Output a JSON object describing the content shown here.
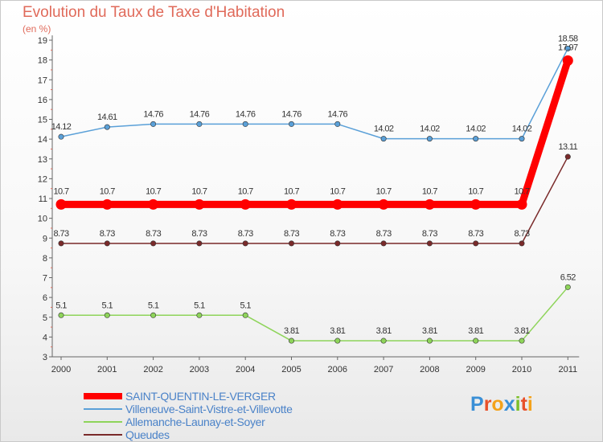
{
  "title": "Evolution du Taux de Taxe d'Habitation",
  "unit_label": "(en %)",
  "logo_text": "Proxiti",
  "logo_colors": [
    "#3a8fd6",
    "#e8502a",
    "#f4a21b",
    "#3a8fd6",
    "#7bbf2a",
    "#e8502a",
    "#f4a21b"
  ],
  "chart_data": {
    "type": "line",
    "title": "Evolution du Taux de Taxe d'Habitation",
    "ylabel": "(en %)",
    "xlabel": "",
    "x": [
      "2000",
      "2001",
      "2002",
      "2003",
      "2004",
      "2005",
      "2006",
      "2007",
      "2008",
      "2009",
      "2010",
      "2011"
    ],
    "ylim": [
      3,
      19
    ],
    "yticks": [
      3,
      4,
      5,
      6,
      7,
      8,
      9,
      10,
      11,
      12,
      13,
      14,
      15,
      16,
      17,
      18,
      19
    ],
    "grid": false,
    "legend": "bottom",
    "series": [
      {
        "name": "SAINT-QUENTIN-LE-VERGER",
        "color": "#ff0000",
        "bold": true,
        "values": [
          10.7,
          10.7,
          10.7,
          10.7,
          10.7,
          10.7,
          10.7,
          10.7,
          10.7,
          10.7,
          10.7,
          17.97
        ],
        "labels": [
          "10.7",
          "10.7",
          "10.7",
          "10.7",
          "10.7",
          "10.7",
          "10.7",
          "10.7",
          "10.7",
          "10.7",
          "10.7",
          "17.97"
        ]
      },
      {
        "name": "Villeneuve-Saint-Vistre-et-Villevotte",
        "color": "#5aa0d8",
        "bold": false,
        "values": [
          14.12,
          14.61,
          14.76,
          14.76,
          14.76,
          14.76,
          14.76,
          14.02,
          14.02,
          14.02,
          14.02,
          18.58
        ],
        "labels": [
          "14.12",
          "14.61",
          "14.76",
          "14.76",
          "14.76",
          "14.76",
          "14.76",
          "14.02",
          "14.02",
          "14.02",
          "14.02",
          "18.58"
        ]
      },
      {
        "name": "Allemanche-Launay-et-Soyer",
        "color": "#8ed45a",
        "bold": false,
        "values": [
          5.1,
          5.1,
          5.1,
          5.1,
          5.1,
          3.81,
          3.81,
          3.81,
          3.81,
          3.81,
          3.81,
          6.52
        ],
        "labels": [
          "5.1",
          "5.1",
          "5.1",
          "5.1",
          "5.1",
          "3.81",
          "3.81",
          "3.81",
          "3.81",
          "3.81",
          "3.81",
          "6.52"
        ]
      },
      {
        "name": "Queudes",
        "color": "#7a2a2a",
        "bold": false,
        "values": [
          8.73,
          8.73,
          8.73,
          8.73,
          8.73,
          8.73,
          8.73,
          8.73,
          8.73,
          8.73,
          8.73,
          13.11
        ],
        "labels": [
          "8.73",
          "8.73",
          "8.73",
          "8.73",
          "8.73",
          "8.73",
          "8.73",
          "8.73",
          "8.73",
          "8.73",
          "8.73",
          "13.11"
        ]
      }
    ]
  }
}
